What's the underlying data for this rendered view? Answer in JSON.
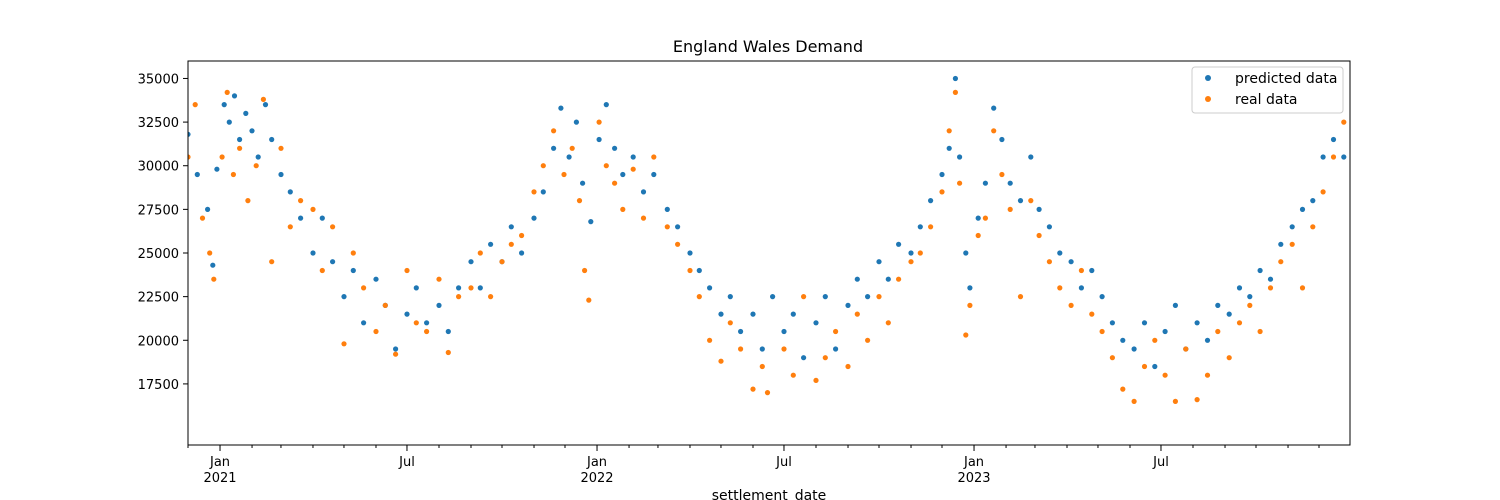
{
  "chart_data": {
    "type": "scatter",
    "title": "England Wales Demand",
    "xlabel": "settlement_date",
    "ylabel": "",
    "x_range": [
      "2020-12-01",
      "2023-12-31"
    ],
    "ylim": [
      14000,
      36000
    ],
    "grid": false,
    "legend_position": "top-right",
    "x_ticks": [
      {
        "date": "2021-01-01",
        "label": "Jan",
        "sublabel": "2021"
      },
      {
        "date": "2021-07-01",
        "label": "Jul",
        "sublabel": ""
      },
      {
        "date": "2022-01-01",
        "label": "Jan",
        "sublabel": "2022"
      },
      {
        "date": "2022-07-01",
        "label": "Jul",
        "sublabel": ""
      },
      {
        "date": "2023-01-01",
        "label": "Jan",
        "sublabel": "2023"
      },
      {
        "date": "2023-07-01",
        "label": "Jul",
        "sublabel": ""
      }
    ],
    "y_ticks": [
      17500,
      20000,
      22500,
      25000,
      27500,
      30000,
      32500,
      35000
    ],
    "series": [
      {
        "name": "predicted data",
        "color": "#1f77b4",
        "points": [
          [
            "2020-12-01",
            31800
          ],
          [
            "2020-12-10",
            29500
          ],
          [
            "2020-12-20",
            27500
          ],
          [
            "2020-12-25",
            24300
          ],
          [
            "2020-12-29",
            29800
          ],
          [
            "2021-01-05",
            33500
          ],
          [
            "2021-01-10",
            32500
          ],
          [
            "2021-01-15",
            34000
          ],
          [
            "2021-01-20",
            31500
          ],
          [
            "2021-01-26",
            33000
          ],
          [
            "2021-02-01",
            32000
          ],
          [
            "2021-02-07",
            30500
          ],
          [
            "2021-02-14",
            33500
          ],
          [
            "2021-02-20",
            31500
          ],
          [
            "2021-03-01",
            29500
          ],
          [
            "2021-03-10",
            28500
          ],
          [
            "2021-03-20",
            27000
          ],
          [
            "2021-04-01",
            25000
          ],
          [
            "2021-04-10",
            27000
          ],
          [
            "2021-04-20",
            24500
          ],
          [
            "2021-05-01",
            22500
          ],
          [
            "2021-05-10",
            24000
          ],
          [
            "2021-05-20",
            21000
          ],
          [
            "2021-06-01",
            23500
          ],
          [
            "2021-06-10",
            22000
          ],
          [
            "2021-06-20",
            19500
          ],
          [
            "2021-07-01",
            21500
          ],
          [
            "2021-07-10",
            23000
          ],
          [
            "2021-07-20",
            21000
          ],
          [
            "2021-08-01",
            22000
          ],
          [
            "2021-08-10",
            20500
          ],
          [
            "2021-08-20",
            23000
          ],
          [
            "2021-09-01",
            24500
          ],
          [
            "2021-09-10",
            23000
          ],
          [
            "2021-09-20",
            25500
          ],
          [
            "2021-10-01",
            24500
          ],
          [
            "2021-10-10",
            26500
          ],
          [
            "2021-10-20",
            25000
          ],
          [
            "2021-11-01",
            27000
          ],
          [
            "2021-11-10",
            28500
          ],
          [
            "2021-11-20",
            31000
          ],
          [
            "2021-11-27",
            33300
          ],
          [
            "2021-12-05",
            30500
          ],
          [
            "2021-12-12",
            32500
          ],
          [
            "2021-12-18",
            29000
          ],
          [
            "2021-12-26",
            26800
          ],
          [
            "2022-01-03",
            31500
          ],
          [
            "2022-01-10",
            33500
          ],
          [
            "2022-01-18",
            31000
          ],
          [
            "2022-01-26",
            29500
          ],
          [
            "2022-02-05",
            30500
          ],
          [
            "2022-02-15",
            28500
          ],
          [
            "2022-02-25",
            29500
          ],
          [
            "2022-03-10",
            27500
          ],
          [
            "2022-03-20",
            26500
          ],
          [
            "2022-04-01",
            25000
          ],
          [
            "2022-04-10",
            24000
          ],
          [
            "2022-04-20",
            23000
          ],
          [
            "2022-05-01",
            21500
          ],
          [
            "2022-05-10",
            22500
          ],
          [
            "2022-05-20",
            20500
          ],
          [
            "2022-06-01",
            21500
          ],
          [
            "2022-06-10",
            19500
          ],
          [
            "2022-06-20",
            22500
          ],
          [
            "2022-07-01",
            20500
          ],
          [
            "2022-07-10",
            21500
          ],
          [
            "2022-07-20",
            19000
          ],
          [
            "2022-08-01",
            21000
          ],
          [
            "2022-08-10",
            22500
          ],
          [
            "2022-08-20",
            19500
          ],
          [
            "2022-09-01",
            22000
          ],
          [
            "2022-09-10",
            23500
          ],
          [
            "2022-09-20",
            22500
          ],
          [
            "2022-10-01",
            24500
          ],
          [
            "2022-10-10",
            23500
          ],
          [
            "2022-10-20",
            25500
          ],
          [
            "2022-11-01",
            25000
          ],
          [
            "2022-11-10",
            26500
          ],
          [
            "2022-11-20",
            28000
          ],
          [
            "2022-12-01",
            29500
          ],
          [
            "2022-12-08",
            31000
          ],
          [
            "2022-12-14",
            35000
          ],
          [
            "2022-12-18",
            30500
          ],
          [
            "2022-12-24",
            25000
          ],
          [
            "2022-12-28",
            23000
          ],
          [
            "2023-01-05",
            27000
          ],
          [
            "2023-01-12",
            29000
          ],
          [
            "2023-01-20",
            33300
          ],
          [
            "2023-01-28",
            31500
          ],
          [
            "2023-02-05",
            29000
          ],
          [
            "2023-02-15",
            28000
          ],
          [
            "2023-02-25",
            30500
          ],
          [
            "2023-03-05",
            27500
          ],
          [
            "2023-03-15",
            26500
          ],
          [
            "2023-03-25",
            25000
          ],
          [
            "2023-04-05",
            24500
          ],
          [
            "2023-04-15",
            23000
          ],
          [
            "2023-04-25",
            24000
          ],
          [
            "2023-05-05",
            22500
          ],
          [
            "2023-05-15",
            21000
          ],
          [
            "2023-05-25",
            20000
          ],
          [
            "2023-06-05",
            19500
          ],
          [
            "2023-06-15",
            21000
          ],
          [
            "2023-06-25",
            18500
          ],
          [
            "2023-07-05",
            20500
          ],
          [
            "2023-07-15",
            22000
          ],
          [
            "2023-07-25",
            19500
          ],
          [
            "2023-08-05",
            21000
          ],
          [
            "2023-08-15",
            20000
          ],
          [
            "2023-08-25",
            22000
          ],
          [
            "2023-09-05",
            21500
          ],
          [
            "2023-09-15",
            23000
          ],
          [
            "2023-09-25",
            22500
          ],
          [
            "2023-10-05",
            24000
          ],
          [
            "2023-10-15",
            23500
          ],
          [
            "2023-10-25",
            25500
          ],
          [
            "2023-11-05",
            26500
          ],
          [
            "2023-11-15",
            27500
          ],
          [
            "2023-11-25",
            28000
          ],
          [
            "2023-12-05",
            30500
          ],
          [
            "2023-12-15",
            31500
          ],
          [
            "2023-12-25",
            30500
          ]
        ]
      },
      {
        "name": "real data",
        "color": "#ff7f0e",
        "points": [
          [
            "2020-12-01",
            30500
          ],
          [
            "2020-12-08",
            33500
          ],
          [
            "2020-12-15",
            27000
          ],
          [
            "2020-12-22",
            25000
          ],
          [
            "2020-12-26",
            23500
          ],
          [
            "2021-01-03",
            30500
          ],
          [
            "2021-01-08",
            34200
          ],
          [
            "2021-01-14",
            29500
          ],
          [
            "2021-01-20",
            31000
          ],
          [
            "2021-01-28",
            28000
          ],
          [
            "2021-02-05",
            30000
          ],
          [
            "2021-02-12",
            33800
          ],
          [
            "2021-02-20",
            24500
          ],
          [
            "2021-03-01",
            31000
          ],
          [
            "2021-03-10",
            26500
          ],
          [
            "2021-03-20",
            28000
          ],
          [
            "2021-04-01",
            27500
          ],
          [
            "2021-04-10",
            24000
          ],
          [
            "2021-04-20",
            26500
          ],
          [
            "2021-05-01",
            19800
          ],
          [
            "2021-05-10",
            25000
          ],
          [
            "2021-05-20",
            23000
          ],
          [
            "2021-06-01",
            20500
          ],
          [
            "2021-06-10",
            22000
          ],
          [
            "2021-06-20",
            19200
          ],
          [
            "2021-07-01",
            24000
          ],
          [
            "2021-07-10",
            21000
          ],
          [
            "2021-07-20",
            20500
          ],
          [
            "2021-08-01",
            23500
          ],
          [
            "2021-08-10",
            19300
          ],
          [
            "2021-08-20",
            22500
          ],
          [
            "2021-09-01",
            23000
          ],
          [
            "2021-09-10",
            25000
          ],
          [
            "2021-09-20",
            22500
          ],
          [
            "2021-10-01",
            24500
          ],
          [
            "2021-10-10",
            25500
          ],
          [
            "2021-10-20",
            26000
          ],
          [
            "2021-11-01",
            28500
          ],
          [
            "2021-11-10",
            30000
          ],
          [
            "2021-11-20",
            32000
          ],
          [
            "2021-11-30",
            29500
          ],
          [
            "2021-12-08",
            31000
          ],
          [
            "2021-12-15",
            28000
          ],
          [
            "2021-12-20",
            24000
          ],
          [
            "2021-12-24",
            22300
          ],
          [
            "2022-01-03",
            32500
          ],
          [
            "2022-01-10",
            30000
          ],
          [
            "2022-01-18",
            29000
          ],
          [
            "2022-01-26",
            27500
          ],
          [
            "2022-02-05",
            29800
          ],
          [
            "2022-02-15",
            27000
          ],
          [
            "2022-02-25",
            30500
          ],
          [
            "2022-03-10",
            26500
          ],
          [
            "2022-03-20",
            25500
          ],
          [
            "2022-04-01",
            24000
          ],
          [
            "2022-04-10",
            22500
          ],
          [
            "2022-04-20",
            20000
          ],
          [
            "2022-05-01",
            18800
          ],
          [
            "2022-05-10",
            21000
          ],
          [
            "2022-05-20",
            19500
          ],
          [
            "2022-06-01",
            17200
          ],
          [
            "2022-06-10",
            18500
          ],
          [
            "2022-06-15",
            17000
          ],
          [
            "2022-07-01",
            19500
          ],
          [
            "2022-07-10",
            18000
          ],
          [
            "2022-07-20",
            22500
          ],
          [
            "2022-08-01",
            17700
          ],
          [
            "2022-08-10",
            19000
          ],
          [
            "2022-08-20",
            20500
          ],
          [
            "2022-09-01",
            18500
          ],
          [
            "2022-09-10",
            21500
          ],
          [
            "2022-09-20",
            20000
          ],
          [
            "2022-10-01",
            22500
          ],
          [
            "2022-10-10",
            21000
          ],
          [
            "2022-10-20",
            23500
          ],
          [
            "2022-11-01",
            24500
          ],
          [
            "2022-11-10",
            25000
          ],
          [
            "2022-11-20",
            26500
          ],
          [
            "2022-12-01",
            28500
          ],
          [
            "2022-12-08",
            32000
          ],
          [
            "2022-12-14",
            34200
          ],
          [
            "2022-12-18",
            29000
          ],
          [
            "2022-12-24",
            20300
          ],
          [
            "2022-12-28",
            22000
          ],
          [
            "2023-01-05",
            26000
          ],
          [
            "2023-01-12",
            27000
          ],
          [
            "2023-01-20",
            32000
          ],
          [
            "2023-01-28",
            29500
          ],
          [
            "2023-02-05",
            27500
          ],
          [
            "2023-02-15",
            22500
          ],
          [
            "2023-02-25",
            28000
          ],
          [
            "2023-03-05",
            26000
          ],
          [
            "2023-03-15",
            24500
          ],
          [
            "2023-03-25",
            23000
          ],
          [
            "2023-04-05",
            22000
          ],
          [
            "2023-04-15",
            24000
          ],
          [
            "2023-04-25",
            21500
          ],
          [
            "2023-05-05",
            20500
          ],
          [
            "2023-05-15",
            19000
          ],
          [
            "2023-05-25",
            17200
          ],
          [
            "2023-06-05",
            16500
          ],
          [
            "2023-06-15",
            18500
          ],
          [
            "2023-06-25",
            20000
          ],
          [
            "2023-07-05",
            18000
          ],
          [
            "2023-07-15",
            16500
          ],
          [
            "2023-07-25",
            19500
          ],
          [
            "2023-08-05",
            16600
          ],
          [
            "2023-08-15",
            18000
          ],
          [
            "2023-08-25",
            20500
          ],
          [
            "2023-09-05",
            19000
          ],
          [
            "2023-09-15",
            21000
          ],
          [
            "2023-09-25",
            22000
          ],
          [
            "2023-10-05",
            20500
          ],
          [
            "2023-10-15",
            23000
          ],
          [
            "2023-10-25",
            24500
          ],
          [
            "2023-11-05",
            25500
          ],
          [
            "2023-11-15",
            23000
          ],
          [
            "2023-11-25",
            26500
          ],
          [
            "2023-12-05",
            28500
          ],
          [
            "2023-12-15",
            30500
          ],
          [
            "2023-12-25",
            32500
          ]
        ]
      }
    ]
  }
}
